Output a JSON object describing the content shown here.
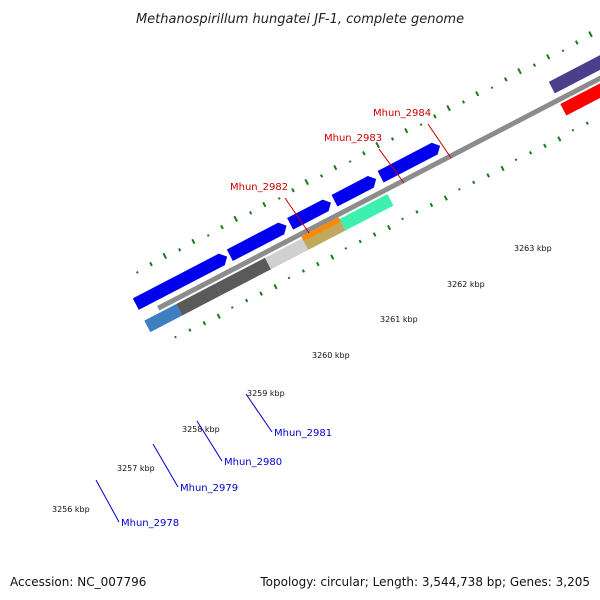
{
  "title": "Methanospirillum hungatei JF-1, complete genome",
  "footer": {
    "accession": "Accession: NC_007796",
    "summary": "Topology: circular; Length: 3,544,738 bp; Genes: 3,205"
  },
  "ticks": [
    "3256 kbp",
    "3257 kbp",
    "3258 kbp",
    "3259 kbp",
    "3260 kbp",
    "3261 kbp",
    "3262 kbp",
    "3263 kbp"
  ],
  "genes": [
    {
      "label": "Mhun_2978",
      "color": "#0000cc"
    },
    {
      "label": "Mhun_2979",
      "color": "#0000cc"
    },
    {
      "label": "Mhun_2980",
      "color": "#0000cc"
    },
    {
      "label": "Mhun_2981",
      "color": "#0000cc"
    },
    {
      "label": "Mhun_2982",
      "color": "#cc0000"
    },
    {
      "label": "Mhun_2983",
      "color": "#cc0000"
    },
    {
      "label": "Mhun_2984",
      "color": "#cc0000"
    }
  ],
  "colors": {
    "cds_forward": "#0000ee",
    "cds_reverse": "#ff0000",
    "cog_purple": "#4b3f8c",
    "backbone": "#8c8c8c",
    "gc_marks": "#1a7a1a",
    "cog_teal": "#3ef0b0",
    "cog_orange": "#ff8800",
    "cog_tan": "#c0a85c",
    "cog_lightgray": "#d0d0d0",
    "cog_darkgray": "#5a5a5a",
    "cog_steelblue": "#3d7fc0"
  }
}
